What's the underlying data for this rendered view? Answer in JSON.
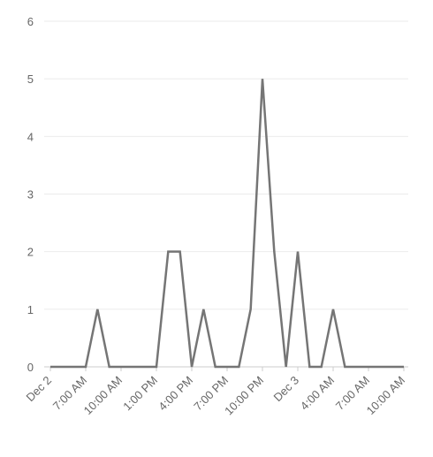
{
  "chart_data": {
    "type": "line",
    "categories": [
      "Dec 2",
      null,
      null,
      "7:00 AM",
      null,
      null,
      "10:00 AM",
      null,
      null,
      "1:00 PM",
      null,
      null,
      "4:00 PM",
      null,
      null,
      "7:00 PM",
      null,
      null,
      "10:00 PM",
      null,
      null,
      "Dec 3",
      null,
      null,
      "4:00 AM",
      null,
      null,
      "7:00 AM",
      null,
      null,
      "10:00 AM"
    ],
    "series": [
      {
        "color": "#757575",
        "values": [
          0,
          0,
          0,
          0,
          1,
          0,
          0,
          0,
          0,
          0,
          2,
          2,
          0,
          1,
          0,
          0,
          0,
          1,
          5,
          2,
          0,
          2,
          0,
          0,
          1,
          0,
          0,
          0,
          0,
          0,
          0
        ]
      }
    ],
    "ylim": [
      0,
      6
    ],
    "yticks": [
      0,
      1,
      2,
      3,
      4,
      5,
      6
    ],
    "grid": true
  }
}
